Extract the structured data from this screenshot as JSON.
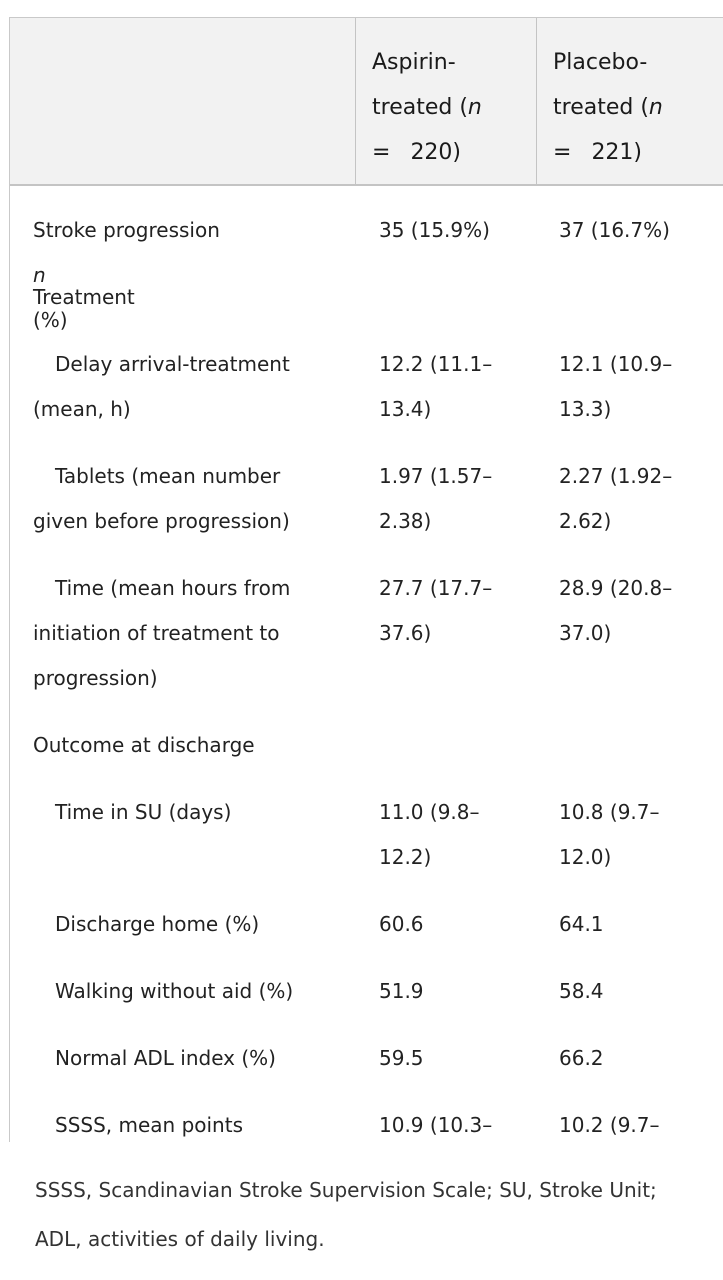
{
  "header": {
    "col0": "",
    "col1": {
      "line1": "Aspirin-",
      "line2a": "treated (",
      "line2b": "n",
      "eq": "=",
      "n": "220)"
    },
    "col2": {
      "line1": "Placebo-",
      "line2a": "treated (",
      "line2b": "n",
      "eq": "=",
      "n": "221)"
    }
  },
  "rows": {
    "progression": {
      "label_a": "Stroke progression ",
      "label_n": "n",
      "label_b": " (%)",
      "v1": "35 (15.9%)",
      "v2": "37 (16.7%)"
    },
    "treatment": {
      "label": "Treatment"
    },
    "delay": {
      "label1": "Delay arrival-treatment",
      "label2": "(mean, h)",
      "v1a": "12.2 (11.1–",
      "v1b": "13.4)",
      "v2a": "12.1 (10.9–",
      "v2b": "13.3)"
    },
    "tablets": {
      "label1": "Tablets (mean number",
      "label2": "given before progression)",
      "v1a": "1.97 (1.57–",
      "v1b": "2.38)",
      "v2a": "2.27 (1.92–",
      "v2b": "2.62)"
    },
    "time": {
      "label1": "Time (mean hours from",
      "label2": "initiation of treatment to",
      "label3": "progression)",
      "v1a": "27.7 (17.7–",
      "v1b": "37.6)",
      "v2a": "28.9 (20.8–",
      "v2b": "37.0)"
    },
    "outcome": {
      "label": "Outcome at discharge"
    },
    "su": {
      "label": "Time in SU (days)",
      "v1a": "11.0 (9.8–",
      "v1b": "12.2)",
      "v2a": "10.8 (9.7–",
      "v2b": "12.0)"
    },
    "home": {
      "label": "Discharge home (%)",
      "v1": "60.6",
      "v2": "64.1"
    },
    "walking": {
      "label": "Walking without aid (%)",
      "v1": "51.9",
      "v2": "58.4"
    },
    "adl": {
      "label": "Normal ADL index (%)",
      "v1": "59.5",
      "v2": "66.2"
    },
    "ssss": {
      "label": "SSSS, mean points",
      "v1a": "10.9 (10.3–",
      "v2a": "10.2 (9.7–"
    }
  },
  "footnote": {
    "line1": "SSSS, Scandinavian Stroke Supervision Scale; SU, Stroke Unit;",
    "line2": "ADL, activities of daily living."
  }
}
